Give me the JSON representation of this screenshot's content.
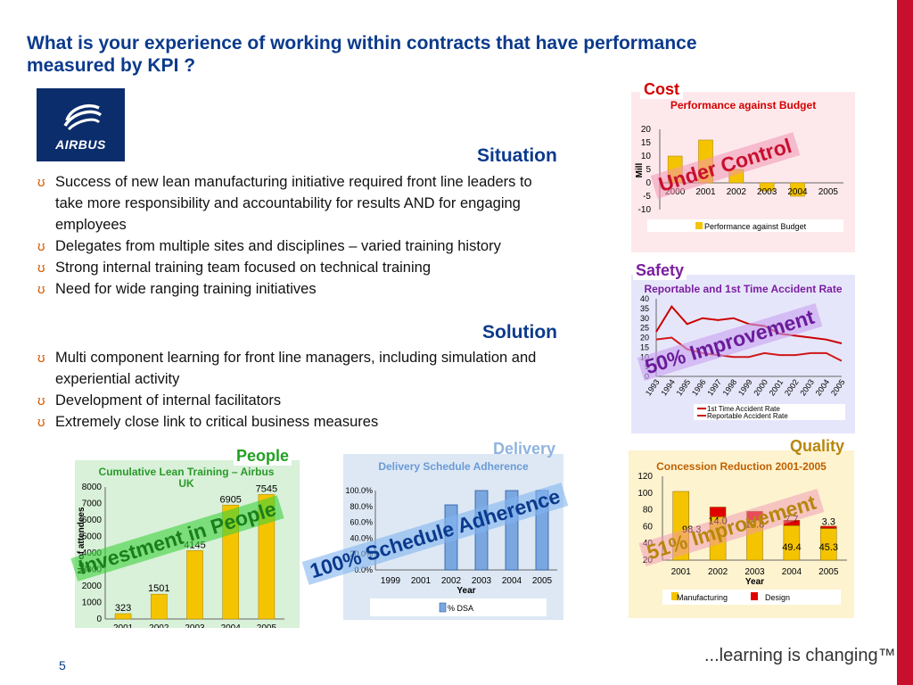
{
  "title": "What is your experience of working within contracts that have performance measured by KPI ?",
  "logo_text": "AIRBUS",
  "situation": {
    "heading": "Situation",
    "bullets": [
      "Success of new lean manufacturing initiative required front line leaders to take more responsibility and accountability for results AND for engaging employees",
      "Delegates from multiple sites and disciplines – varied training history",
      "Strong internal training team focused on technical training",
      "Need for wide ranging training initiatives"
    ]
  },
  "solution": {
    "heading": "Solution",
    "bullets": [
      "Multi component learning for front line managers, including simulation and experiential activity",
      "Development of internal facilitators",
      "Extremely close link to critical business measures"
    ]
  },
  "bullet_glyph": "ʊ",
  "panels": {
    "cost": {
      "label": "Cost",
      "overlay": "Under Control"
    },
    "safety": {
      "label": "Safety",
      "overlay": "50% Improvement"
    },
    "people": {
      "label": "People",
      "overlay": "Investment in People"
    },
    "delivery": {
      "label": "Delivery",
      "overlay": "100% Schedule Adherence"
    },
    "quality": {
      "label": "Quality",
      "overlay": "51% Improvement"
    }
  },
  "colors": {
    "title": "#0b3a8c",
    "accent_bar": "#c8102e",
    "bullet": "#d55a00",
    "cost_label": "#d40000",
    "safety_label": "#7a1fa0",
    "people_label": "#22a022",
    "delivery_label": "#8fb4e0",
    "quality_label": "#b8860b",
    "yellow_bar": "#f5c400",
    "blue_bar": "#7aa7e0"
  },
  "page_number": "5",
  "tagline": "...learning is changing™",
  "chart_data": [
    {
      "id": "cost",
      "type": "bar",
      "title": "Performance against Budget",
      "ylabel": "Mill",
      "categories": [
        "2000",
        "2001",
        "2002",
        "2003",
        "2004",
        "2005"
      ],
      "series": [
        {
          "name": "Performance against Budget",
          "values": [
            10,
            16,
            5,
            -3,
            -5,
            0
          ]
        }
      ],
      "ylim": [
        -10,
        20
      ],
      "yticks": [
        "20",
        "15",
        "10",
        "5",
        "0",
        "-5",
        "-10"
      ],
      "legend": "bottom"
    },
    {
      "id": "safety",
      "type": "line",
      "title": "Reportable and 1st Time Accident Rate",
      "categories": [
        "1993",
        "1994",
        "1995",
        "1996",
        "1997",
        "1998",
        "1999",
        "2000",
        "2001",
        "2002",
        "2003",
        "2004",
        "2005"
      ],
      "series": [
        {
          "name": "1st Time Accident Rate",
          "values": [
            23,
            36,
            27,
            30,
            29,
            30,
            27,
            26,
            22,
            21,
            20,
            19,
            17
          ]
        },
        {
          "name": "Reportable Accident Rate",
          "values": [
            19,
            20,
            14,
            12,
            11,
            10,
            10,
            12,
            11,
            11,
            12,
            12,
            8
          ]
        }
      ],
      "ylim": [
        0,
        40
      ],
      "yticks": [
        "40",
        "35",
        "30",
        "25",
        "20",
        "15",
        "10",
        "5",
        "0"
      ],
      "legend": "bottom"
    },
    {
      "id": "people",
      "type": "bar",
      "title": "Cumulative Lean Training – Airbus UK",
      "ylabel": "No of attendees",
      "categories": [
        "2001",
        "2002",
        "2003",
        "2004",
        "2005"
      ],
      "values": [
        323,
        1501,
        4145,
        6905,
        7545
      ],
      "labels": [
        "323",
        "1501",
        "4145",
        "6905",
        "7545"
      ],
      "ylim": [
        0,
        8000
      ],
      "yticks": [
        "8000",
        "7000",
        "6000",
        "5000",
        "4000",
        "3000",
        "2000",
        "1000",
        "0"
      ]
    },
    {
      "id": "delivery",
      "type": "bar",
      "title": "Delivery Schedule Adherence",
      "xlabel": "Year",
      "categories": [
        "1999",
        "2001",
        "2002",
        "2003",
        "2004",
        "2005"
      ],
      "series": [
        {
          "name": "% DSA",
          "values": [
            0,
            0,
            82,
            100,
            100,
            100
          ]
        }
      ],
      "ylim": [
        0,
        100
      ],
      "yticks": [
        "100.0%",
        "80.0%",
        "60.0%",
        "40.0%",
        "20.0%",
        "0.0%"
      ],
      "legend": "bottom"
    },
    {
      "id": "quality",
      "type": "bar",
      "title": "Concession Reduction 2001-2005",
      "xlabel": "Year",
      "categories": [
        "2001",
        "2002",
        "2003",
        "2004",
        "2005"
      ],
      "series": [
        {
          "name": "Manufacturing",
          "values": [
            98.3,
            62,
            57,
            49.4,
            45.3
          ],
          "labels": [
            "98.3",
            "",
            "",
            "49.4",
            "45.3"
          ]
        },
        {
          "name": "Design",
          "values": [
            0,
            14.0,
            12.8,
            7.7,
            3.3
          ],
          "labels": [
            "",
            "14.0",
            "12.8",
            "7.7",
            "3.3"
          ]
        }
      ],
      "ylim": [
        0,
        120
      ],
      "yticks": [
        "120",
        "100",
        "80",
        "60",
        "40",
        "20"
      ],
      "legend": "bottom"
    }
  ]
}
